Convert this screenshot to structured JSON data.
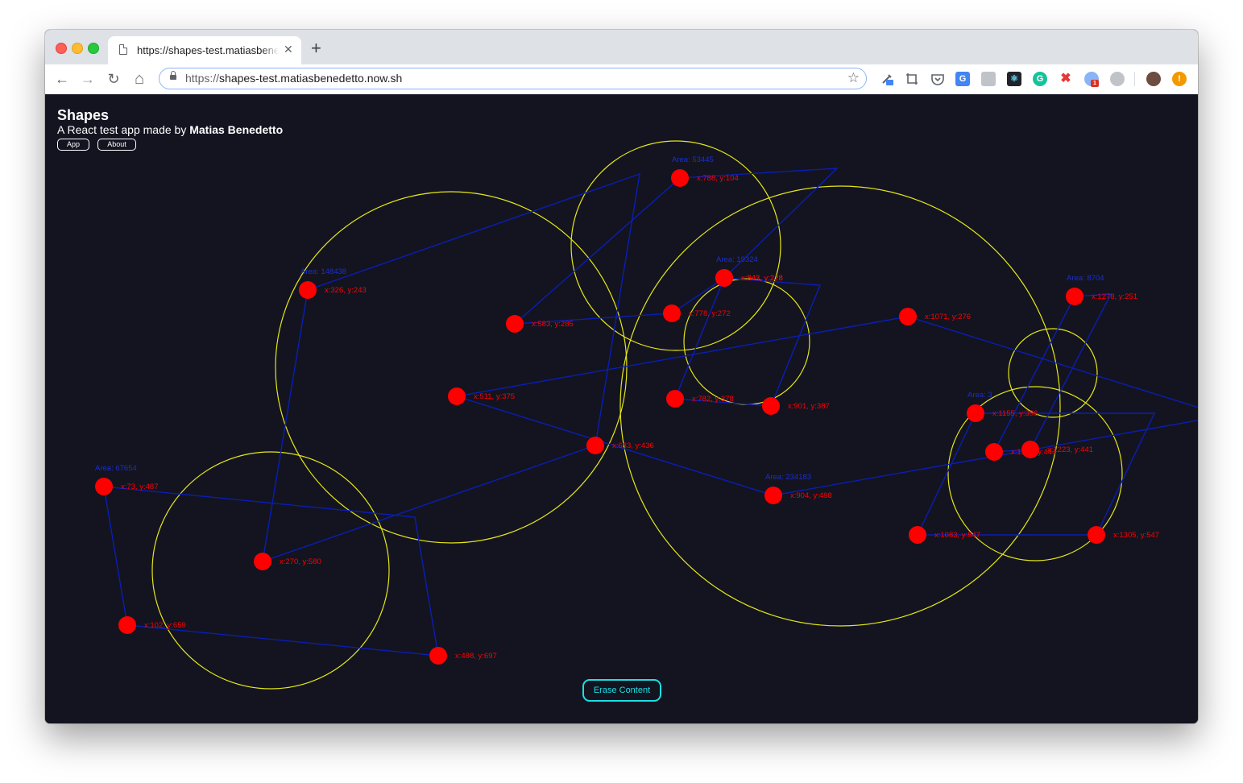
{
  "browser": {
    "tab_title": "https://shapes-test.matiasbenedetto.now.sh",
    "tab_close": "✕",
    "new_tab": "+",
    "url_scheme": "https://",
    "url_host": "shapes-test.matiasbenedetto.now.sh",
    "nav": {
      "back": "←",
      "forward": "→",
      "reload": "↻",
      "home": "⌂"
    },
    "bookmark": "☆",
    "extension_badge": "1"
  },
  "app": {
    "title": "Shapes",
    "subtitle_prefix": "A React test app made by ",
    "author": "Matias Benedetto",
    "nav": [
      "App",
      "About"
    ],
    "erase_label": "Erase Content"
  },
  "colors": {
    "background": "#131420",
    "point": "#ff0000",
    "polygon": "#0a1eb4",
    "circle": "#e6e619",
    "area_label": "#1a2fd0",
    "button_accent": "#19e0e6"
  },
  "shapes": [
    {
      "area_label": "Area: 53445",
      "points": [
        {
          "label": "x:788, y:104"
        },
        {
          "label": "x:583, y:285"
        },
        {
          "label": "x:778, y:272"
        },
        {
          "label": "x:843, y:228"
        }
      ]
    },
    {
      "area_label": "Area: 148438",
      "points": [
        {
          "label": "x:326, y:243"
        },
        {
          "label": "x:270, y:580"
        },
        {
          "label": "x:683, y:436"
        }
      ]
    },
    {
      "area_label": "Area: 19324",
      "points": [
        {
          "label": "x:843, y:228"
        },
        {
          "label": "x:782, y:378"
        },
        {
          "label": "x:901, y:387"
        }
      ]
    },
    {
      "area_label": "Area: 234183",
      "points": [
        {
          "label": "x:1071, y:276"
        },
        {
          "label": "x:511, y:375"
        },
        {
          "label": "x:904, y:498"
        }
      ]
    },
    {
      "area_label": "Area: 67654",
      "points": [
        {
          "label": "x:73, y:487"
        },
        {
          "label": "x:102, y:659"
        },
        {
          "label": "x:488, y:697"
        }
      ]
    },
    {
      "area_label": "Area: 8704",
      "points": [
        {
          "label": "x:1278, y:251"
        },
        {
          "label": "x:1178, y:444"
        },
        {
          "label": "x:1223, y:441"
        }
      ]
    },
    {
      "area_label": "Area: 3",
      "points": [
        {
          "label": "x:1155, y:396"
        },
        {
          "label": "x:1083, y:547"
        },
        {
          "label": "x:1305, y:547"
        }
      ]
    }
  ]
}
